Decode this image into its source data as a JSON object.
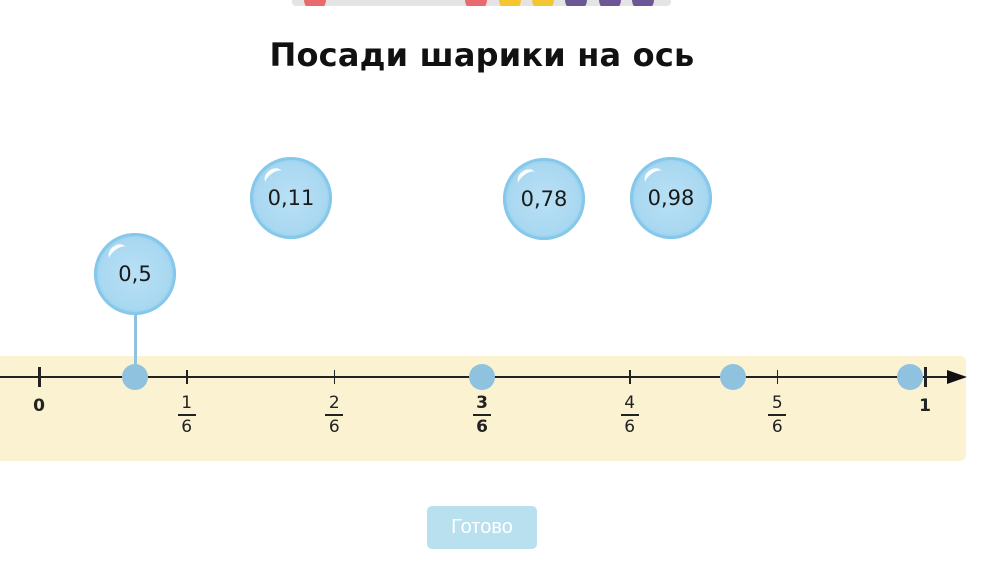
{
  "progress_bar": {
    "pips": [
      "#e86a6f",
      "#e86a6f",
      "#f5c533",
      "#f5c533",
      "#6b5796",
      "#6b5796",
      "#6b5796"
    ]
  },
  "title": "Посади шарики на ось",
  "number_line": {
    "min": 0,
    "max": 1,
    "integer_labels": [
      {
        "value": 0,
        "text": "0"
      },
      {
        "value": 1,
        "text": "1"
      }
    ],
    "fraction_labels": [
      {
        "value": 0.1667,
        "num": "1",
        "den": "6"
      },
      {
        "value": 0.3333,
        "num": "2",
        "den": "6"
      },
      {
        "value": 0.5,
        "num": "3",
        "den": "6",
        "bold": true
      },
      {
        "value": 0.6667,
        "num": "4",
        "den": "6"
      },
      {
        "value": 0.8333,
        "num": "5",
        "den": "6"
      }
    ],
    "dots": [
      0.108,
      0.5,
      0.783,
      0.983
    ],
    "colors": {
      "band": "#fbf2d2",
      "dot": "#8fc2df"
    }
  },
  "balloons": [
    {
      "label": "0,5",
      "attached_to_dot": 0.108
    },
    {
      "label": "0,11"
    },
    {
      "label": "0,78"
    },
    {
      "label": "0,98"
    }
  ],
  "done_button": {
    "label": "Готово",
    "enabled": false,
    "color": "#b8e0ef"
  }
}
